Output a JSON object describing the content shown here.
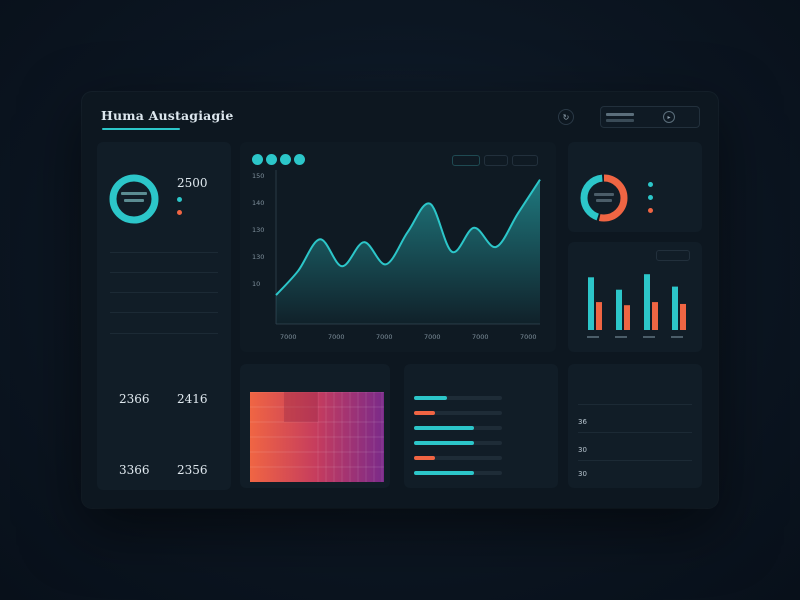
{
  "header": {
    "title": "Huma Austagiagie",
    "search_text": "",
    "btn_1": "",
    "btn_2": ""
  },
  "left_panel": {
    "title": "",
    "ring_value": "2500",
    "legend": [
      "",
      ""
    ],
    "rows": [
      {
        "label": "",
        "value": ""
      },
      {
        "label": "",
        "value": ""
      },
      {
        "label": "",
        "value": ""
      },
      {
        "label": "",
        "value": ""
      },
      {
        "label": "",
        "value": ""
      }
    ],
    "stats_a_title": "",
    "stats_a": [
      {
        "label": "",
        "value": "2366"
      },
      {
        "label": "",
        "value": "2416"
      }
    ],
    "stats_b_title": "",
    "stats_b": [
      {
        "label": "",
        "value": "3366"
      },
      {
        "label": "",
        "value": "2356"
      }
    ]
  },
  "main_chart": {
    "chips": [
      "",
      "",
      ""
    ],
    "y_ticks": [
      "150",
      "140",
      "130",
      "130",
      "10"
    ],
    "x_ticks": [
      "7000",
      "7000",
      "7000",
      "7000",
      "7000",
      "7000"
    ]
  },
  "chart_data": [
    {
      "type": "area",
      "title": "",
      "x": [
        0,
        1,
        2,
        3,
        4,
        5,
        6,
        7,
        8,
        9,
        10,
        11,
        12
      ],
      "y": [
        30,
        55,
        88,
        60,
        85,
        62,
        96,
        125,
        75,
        100,
        80,
        115,
        150
      ],
      "ylim": [
        0,
        160
      ],
      "color": "#2cc6c9",
      "grid": false
    },
    {
      "type": "pie",
      "title": "",
      "values": [
        55,
        45
      ],
      "colors": [
        "#f06543",
        "#2cc6c9"
      ]
    },
    {
      "type": "bar",
      "title": "",
      "categories": [
        "",
        "",
        "",
        ""
      ],
      "series": [
        {
          "values": [
            85,
            65,
            90,
            70
          ],
          "color": "#2cc6c9"
        },
        {
          "values": [
            45,
            40,
            45,
            42
          ],
          "color": "#f06543"
        }
      ],
      "ylim": [
        0,
        100
      ]
    },
    {
      "type": "heatmap",
      "title": "",
      "colors": [
        "#f06543",
        "#c53c5e",
        "#7a2a8a"
      ]
    }
  ],
  "donut_panel": {
    "title": "",
    "legend": [
      "",
      "",
      ""
    ]
  },
  "bar_panel": {
    "title": "",
    "badge": ""
  },
  "heatmap_panel": {
    "title": "",
    "badge": ""
  },
  "progress_panel": {
    "title": "",
    "bars": [
      {
        "fraction": 0.38,
        "color": "#2cc6c9",
        "value": ""
      },
      {
        "fraction": 0.24,
        "color": "#f06543",
        "value": ""
      },
      {
        "fraction": 0.68,
        "color": "#2cc6c9",
        "value": ""
      },
      {
        "fraction": 0.68,
        "color": "#2cc6c9",
        "value": ""
      },
      {
        "fraction": 0.24,
        "color": "#f06543",
        "value": ""
      },
      {
        "fraction": 0.68,
        "color": "#2cc6c9",
        "value": ""
      }
    ]
  },
  "table_panel": {
    "title": "",
    "headers": [
      "",
      "",
      ""
    ],
    "rows": [
      [
        "36",
        "",
        ""
      ],
      [
        "30",
        "",
        ""
      ],
      [
        "30",
        "",
        ""
      ]
    ]
  }
}
